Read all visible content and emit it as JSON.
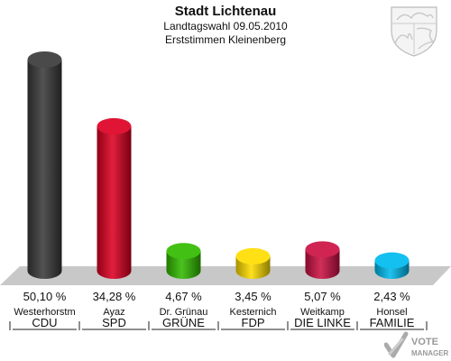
{
  "header": {
    "title": "Stadt Lichtenau",
    "subtitle": "Landtagswahl 09.05.2010",
    "subtitle2": "Erststimmen Kleinenberg"
  },
  "chart_data": {
    "type": "bar",
    "title": "Stadt Lichtenau",
    "subtitle": "Landtagswahl 09.05.2010 / Erststimmen Kleinenberg",
    "categories": [
      "CDU",
      "SPD",
      "GRÜNE",
      "FDP",
      "DIE LINKE",
      "FAMILIE"
    ],
    "candidates": [
      "Westerhorstm",
      "Ayaz",
      "Dr. Grünau",
      "Kesternich",
      "Weitkamp",
      "Honsel"
    ],
    "values": [
      50.1,
      34.28,
      4.67,
      3.45,
      5.07,
      2.43
    ],
    "value_labels": [
      "50,10 %",
      "34,28 %",
      "4,67 %",
      "3,45 %",
      "5,07 %",
      "2,43 %"
    ],
    "colors": [
      "#3a3a3a",
      "#dd0022",
      "#33bb00",
      "#ffdd00",
      "#cc1144",
      "#00bbee"
    ],
    "ylim": [
      0,
      50.1
    ],
    "grid": false,
    "legend": "none"
  },
  "watermark": {
    "line1": "VOTE",
    "line2": "MANAGER"
  }
}
